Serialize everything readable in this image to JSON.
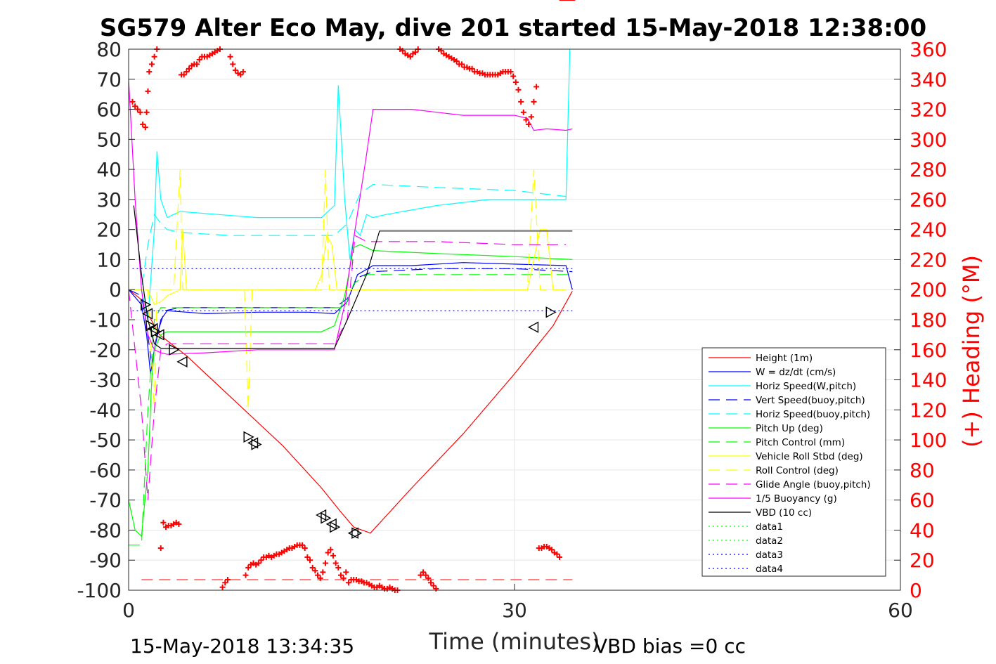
{
  "chart_data": {
    "type": "line",
    "title": "SG579 Alter Eco May, dive 201 started 15-May-2018 12:38:00",
    "xlabel": "Time (minutes)",
    "ylabel": "",
    "y2label": "(+) Heading (°M)",
    "xlim": [
      0,
      60
    ],
    "ylim": [
      -100,
      80
    ],
    "y2lim": [
      0,
      360
    ],
    "xticks": [
      0,
      30,
      60
    ],
    "yticks": [
      80,
      70,
      60,
      50,
      40,
      30,
      20,
      10,
      0,
      -10,
      -20,
      -30,
      -40,
      -50,
      -60,
      -70,
      -80,
      -90,
      -100
    ],
    "y2ticks": [
      360,
      340,
      320,
      300,
      280,
      260,
      240,
      220,
      200,
      180,
      160,
      140,
      120,
      100,
      80,
      60,
      40,
      20,
      0
    ],
    "grid": true,
    "legend_position": "lower-right",
    "footer_left": "15-May-2018 13:34:35",
    "footer_right": "VBD bias =0 cc",
    "series": [
      {
        "name": "Height (1m)",
        "color": "#ff0000",
        "style": "solid",
        "x": [
          0,
          1.2,
          1.5,
          2.0,
          2.4,
          3.0,
          4.5,
          6.0,
          9.0,
          12.0,
          15.0,
          16.5,
          17.5,
          18.8,
          22.0,
          26.0,
          30.0,
          33.0,
          34.5
        ],
        "y": [
          0,
          -4,
          -8,
          -12,
          -15,
          -17,
          -22,
          -28,
          -40,
          -52,
          -66,
          -74,
          -79,
          -81,
          -66,
          -48,
          -28,
          -12,
          -0.5
        ]
      },
      {
        "name": "W = dz/dt (cm/s)",
        "color": "#0000ff",
        "style": "solid",
        "x": [
          0,
          1.0,
          1.4,
          1.7,
          2.0,
          2.5,
          3.0,
          6.0,
          10.0,
          14.0,
          16.0,
          17.0,
          17.8,
          19.0,
          22.0,
          26.0,
          30.0,
          34.0,
          34.5
        ],
        "y": [
          0,
          -5,
          -15,
          -28,
          -20,
          -10,
          -7,
          -8,
          -7.5,
          -7.5,
          -8,
          -4,
          5,
          8,
          8,
          9,
          8.5,
          8,
          0
        ]
      },
      {
        "name": "Horiz Speed(W,pitch)",
        "color": "#00ffff",
        "style": "solid",
        "x": [
          0,
          1.0,
          1.5,
          2.0,
          2.2,
          2.5,
          3.0,
          4.0,
          7.0,
          10.0,
          13.0,
          15.0,
          16.0,
          16.3,
          16.8,
          17.2,
          17.6,
          18.0,
          18.5,
          19.0,
          20.0,
          24.0,
          28.0,
          32.0,
          34.0,
          34.3
        ],
        "y": [
          0,
          0,
          -10,
          20,
          46,
          30,
          24,
          26,
          25,
          24,
          24,
          24,
          28,
          68,
          30,
          10,
          20,
          18,
          25,
          24,
          25,
          28,
          30,
          30,
          30,
          80
        ]
      },
      {
        "name": "Vert Speed(buoy,pitch)",
        "color": "#0000ff",
        "style": "dashed",
        "x": [
          0,
          1.0,
          1.4,
          1.8,
          2.2,
          2.8,
          4.0,
          8.0,
          12.0,
          16.0,
          17.0,
          17.8,
          19.0,
          24.0,
          30.0,
          34.5
        ],
        "y": [
          0,
          -2,
          -12,
          -25,
          -15,
          -7,
          -6,
          -6,
          -6,
          -6,
          -3,
          4,
          6,
          7,
          7,
          6
        ]
      },
      {
        "name": "Horiz Speed(buoy,pitch)",
        "color": "#00ffff",
        "style": "dashed",
        "x": [
          0,
          1.0,
          1.5,
          2.0,
          2.5,
          3.0,
          4.0,
          8.0,
          12.0,
          16.0,
          17.0,
          18.0,
          19.0,
          24.0,
          30.0,
          34.0
        ],
        "y": [
          0,
          0,
          15,
          25,
          22,
          20,
          19,
          18,
          18,
          18,
          22,
          32,
          35,
          34,
          33,
          31
        ]
      },
      {
        "name": "Pitch Up (deg)",
        "color": "#00ff00",
        "style": "solid",
        "x": [
          0,
          0.5,
          1.0,
          1.5,
          1.8,
          2.0,
          2.5,
          3.0,
          5.0,
          8.0,
          12.0,
          15.0,
          16.0,
          16.8,
          17.5,
          18.0,
          19.0,
          24.0,
          30.0,
          34.5
        ],
        "y": [
          -70,
          -80,
          -82,
          -60,
          -30,
          -20,
          -15,
          -14,
          -14,
          -14,
          -14,
          -14,
          -12,
          -2,
          14,
          15,
          13,
          12,
          11,
          10
        ]
      },
      {
        "name": "Pitch Control (mm)",
        "color": "#00ff00",
        "style": "dashed",
        "x": [
          0,
          1.0,
          1.5,
          2.0,
          2.5,
          3.0,
          16.0,
          16.8,
          17.5,
          18.5,
          34.5
        ],
        "y": [
          -85,
          -85,
          -40,
          -10,
          -6,
          -6,
          -6,
          -6,
          2,
          5,
          5
        ]
      },
      {
        "name": "Vehicle Roll Stbd (deg)",
        "color": "#ffff00",
        "style": "solid",
        "x": [
          0,
          1.5,
          2.0,
          2.5,
          3.0,
          4.0,
          4.2,
          4.5,
          8.0,
          12.0,
          14.5,
          15.0,
          15.4,
          15.8,
          16.2,
          17.0,
          20.0,
          24.0,
          28.0,
          31.0,
          32.0,
          32.5,
          33.0,
          34.0
        ],
        "y": [
          0,
          0,
          -5,
          -4,
          -2,
          0,
          20,
          0,
          0,
          0,
          0,
          5,
          18,
          15,
          0,
          0,
          0,
          0,
          0,
          0,
          20,
          20,
          0,
          0
        ]
      },
      {
        "name": "Roll Control (deg)",
        "color": "#ffff00",
        "style": "dashed",
        "x": [
          0,
          1.5,
          2.0,
          2.2,
          2.5,
          3.5,
          4.0,
          4.2,
          8.0,
          9.0,
          9.3,
          9.6,
          14.0,
          15.0,
          15.3,
          15.6,
          16.0,
          20.0,
          31.0,
          31.5,
          32.0,
          32.5,
          34.0
        ],
        "y": [
          0,
          0,
          -40,
          0,
          0,
          0,
          40,
          0,
          0,
          0,
          -40,
          0,
          0,
          0,
          40,
          0,
          0,
          0,
          0,
          40,
          0,
          0,
          0
        ]
      },
      {
        "name": "Glide Angle (buoy,pitch)",
        "color": "#ff00ff",
        "style": "dashed",
        "x": [
          0,
          1.0,
          1.5,
          2.0,
          2.5,
          3.0,
          4.0,
          8.0,
          12.0,
          16.0,
          17.0,
          17.6,
          18.5,
          24.0,
          30.0,
          34.0
        ],
        "y": [
          0,
          -40,
          -70,
          -40,
          -20,
          -18,
          -18,
          -18,
          -18,
          -18,
          -10,
          18,
          16,
          16,
          15,
          15
        ]
      },
      {
        "name": "1/5 Buoyancy (g)",
        "color": "#ff00ff",
        "style": "solid",
        "x": [
          0,
          0.5,
          1.0,
          1.5,
          2.0,
          2.5,
          3.0,
          6.0,
          10.0,
          14.0,
          16.0,
          16.8,
          17.6,
          18.5,
          19.0,
          22.0,
          26.0,
          30.0,
          31.0,
          31.5,
          32.5,
          34.0,
          34.5
        ],
        "y": [
          70,
          30,
          0,
          -15,
          -20,
          -21,
          -21.5,
          -21,
          -20,
          -20,
          -20,
          -5,
          20,
          45,
          60,
          60,
          58,
          58,
          57,
          53,
          53.5,
          53,
          53.5
        ]
      },
      {
        "name": "VBD (10 cc)",
        "color": "#000000",
        "style": "solid",
        "x": [
          0.4,
          1.0,
          1.5,
          2.0,
          2.5,
          16.0,
          17.0,
          18.5,
          19.5,
          34.5
        ],
        "y": [
          28,
          5,
          -10,
          -18,
          -19.5,
          -19.5,
          -10,
          5,
          19.5,
          19.5
        ]
      },
      {
        "name": "data1",
        "color": "#00ff00",
        "style": "dotted",
        "x": [],
        "y": []
      },
      {
        "name": "data2",
        "color": "#00ff00",
        "style": "dotted",
        "x": [],
        "y": []
      },
      {
        "name": "data3",
        "color": "#0000ff",
        "style": "dotted",
        "x": [
          0.3,
          34.5
        ],
        "y": [
          7,
          7
        ]
      },
      {
        "name": "data4",
        "color": "#0000ff",
        "style": "dotted",
        "x": [
          0.3,
          34.5
        ],
        "y": [
          -7,
          -7
        ]
      }
    ],
    "heading_ref": {
      "color": "#ff0000",
      "style": "dashed",
      "x": [
        1.0,
        34.5
      ],
      "y2": [
        7,
        7
      ]
    },
    "heading_points": {
      "color": "#ff0000",
      "marker": "+",
      "x": [
        0.3,
        0.5,
        0.7,
        0.9,
        1.1,
        1.3,
        1.4,
        1.5,
        1.6,
        1.8,
        2.0,
        2.2,
        2.5,
        2.7,
        2.9,
        3.1,
        3.3,
        3.5,
        3.7,
        3.9,
        4.1,
        4.3,
        4.5,
        4.7,
        4.9,
        5.1,
        5.3,
        5.5,
        5.7,
        5.9,
        6.1,
        6.3,
        6.5,
        6.7,
        6.9,
        7.1,
        7.3,
        7.5,
        7.7,
        7.9,
        8.1,
        8.3,
        8.5,
        8.7,
        8.9,
        9.1,
        9.3,
        9.5,
        9.7,
        9.9,
        10.1,
        10.3,
        10.5,
        10.7,
        10.9,
        11.1,
        11.3,
        11.5,
        11.7,
        11.9,
        12.1,
        12.3,
        12.5,
        12.7,
        12.9,
        13.1,
        13.3,
        13.5,
        13.7,
        13.9,
        14.1,
        14.3,
        14.5,
        14.7,
        14.9,
        15.1,
        15.3,
        15.5,
        15.7,
        15.9,
        16.1,
        16.3,
        16.5,
        16.7,
        16.9,
        17.1,
        17.3,
        17.5,
        17.7,
        17.9,
        18.1,
        18.3,
        18.5,
        18.7,
        18.9,
        19.1,
        19.3,
        19.5,
        19.7,
        19.9,
        20.1,
        20.3,
        20.5,
        20.7,
        20.9,
        21.1,
        21.3,
        21.5,
        21.7,
        21.9,
        22.1,
        22.3,
        22.5,
        22.7,
        22.9,
        23.1,
        23.3,
        23.5,
        23.7,
        23.9,
        24.1,
        24.3,
        24.5,
        24.7,
        24.9,
        25.1,
        25.3,
        25.5,
        25.7,
        25.9,
        26.1,
        26.3,
        26.5,
        26.7,
        26.9,
        27.1,
        27.3,
        27.5,
        27.7,
        27.9,
        28.1,
        28.3,
        28.5,
        28.7,
        28.9,
        29.1,
        29.3,
        29.5,
        29.7,
        29.9,
        30.1,
        30.3,
        30.5,
        30.7,
        30.9,
        31.1,
        31.3,
        31.5,
        31.7,
        31.9,
        32.1,
        32.3,
        32.5,
        32.7,
        32.9,
        33.1,
        33.3,
        33.5,
        33.7,
        33.9,
        34.1,
        34.3,
        34.5
      ],
      "y2": [
        325,
        322,
        320,
        318,
        310,
        308,
        318,
        332,
        345,
        350,
        355,
        360,
        28,
        45,
        42,
        43,
        43,
        44,
        45,
        44,
        343,
        343,
        345,
        347,
        349,
        350,
        350,
        353,
        355,
        355,
        355,
        356,
        357,
        358,
        359,
        360,
        2,
        5,
        7,
        355,
        350,
        346,
        344,
        343,
        345,
        10,
        15,
        17,
        18,
        17,
        18,
        20,
        22,
        22,
        23,
        22,
        23,
        24,
        24,
        25,
        26,
        27,
        28,
        28,
        29,
        30,
        30,
        30,
        28,
        22,
        20,
        15,
        13,
        10,
        8,
        12,
        18,
        25,
        27,
        23,
        18,
        15,
        10,
        8,
        12,
        5,
        7,
        7,
        7,
        6,
        6,
        5,
        5,
        4,
        3,
        2,
        2,
        3,
        2,
        1,
        1,
        2,
        1,
        0,
        0,
        360,
        359,
        357,
        356,
        355,
        357,
        358,
        360,
        10,
        12,
        10,
        8,
        5,
        3,
        1,
        360,
        359,
        357,
        356,
        355,
        354,
        353,
        352,
        350,
        350,
        348,
        348,
        347,
        347,
        345,
        345,
        344,
        344,
        343,
        343,
        343,
        343,
        343,
        343,
        344,
        345,
        345,
        345,
        345,
        342,
        338,
        333,
        325,
        318,
        313,
        310,
        315,
        325,
        335,
        28,
        28,
        29,
        29,
        28,
        27,
        25,
        24,
        22
      ]
    },
    "markers": {
      "color": "#000000",
      "shape": "triangle",
      "x": [
        1.3,
        1.5,
        1.7,
        1.9,
        2.1,
        2.4,
        3.5,
        4.2,
        9.3,
        9.7,
        9.9,
        15.0,
        15.3,
        15.8,
        16.0,
        17.5,
        17.7,
        31.5,
        32.8
      ],
      "y": [
        -5,
        -8,
        -12,
        -13,
        -14,
        -15,
        -20,
        -24,
        -49,
        -51,
        -51.5,
        -75,
        -76,
        -78,
        -79,
        -81,
        -81,
        -12.5,
        -7.5
      ]
    }
  }
}
